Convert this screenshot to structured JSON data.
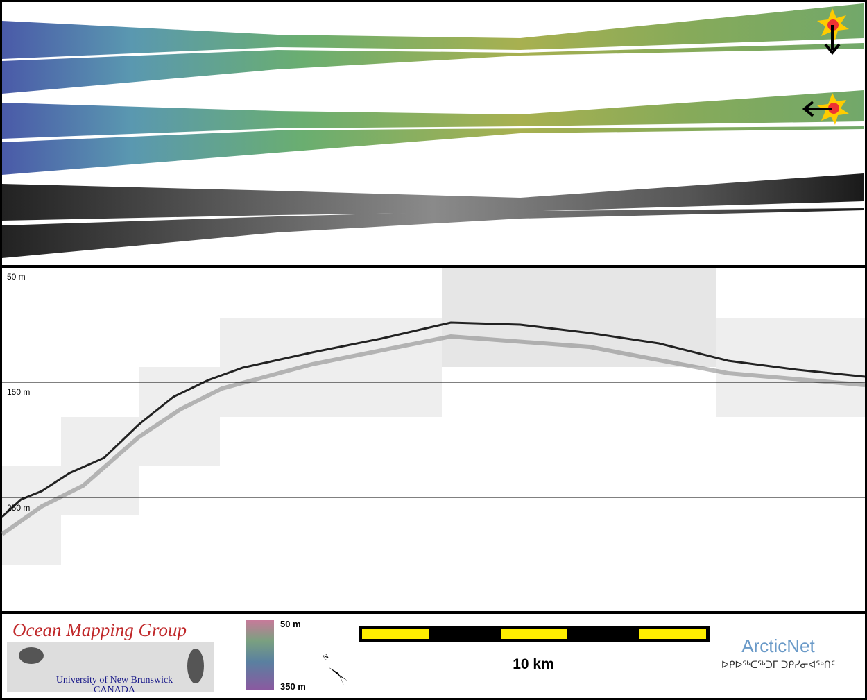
{
  "profile": {
    "depth_labels": [
      "50 m",
      "150 m",
      "250 m"
    ]
  },
  "logo": {
    "title": "Ocean Mapping Group",
    "line1": "University of New Brunswick",
    "line2": "CANADA"
  },
  "colorbar": {
    "top": "50 m",
    "bottom": "350 m"
  },
  "north": "N",
  "scale_bar": {
    "label": "10 km"
  },
  "arcticnet": {
    "name": "ArcticNet",
    "syllabics": "ᐅᑭᐅᖅᑕᖅᑐᒥ ᑐᑭᓯᓂᐊᖅᑎᑦ"
  }
}
